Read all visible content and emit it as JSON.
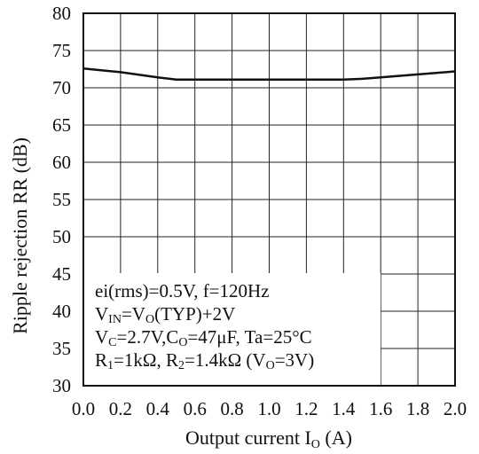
{
  "chart_data": {
    "type": "line",
    "title": "",
    "xlabel": "Output current I",
    "xlabel_sub": "O",
    "xlabel_unit": " (A)",
    "ylabel": "Ripple rejection RR  (dB)",
    "xlim": [
      0.0,
      2.0
    ],
    "ylim": [
      30,
      80
    ],
    "x_ticks": [
      "0.0",
      "0.2",
      "0.4",
      "0.6",
      "0.8",
      "1.0",
      "1.2",
      "1.4",
      "1.6",
      "1.8",
      "2.0"
    ],
    "y_ticks": [
      "30",
      "35",
      "40",
      "45",
      "50",
      "55",
      "60",
      "65",
      "70",
      "75",
      "80"
    ],
    "grid": true,
    "series": [
      {
        "x": [
          0.0,
          0.2,
          0.4,
          0.5,
          0.6,
          1.0,
          1.4,
          1.5,
          1.6,
          1.8,
          2.0
        ],
        "y": [
          72.6,
          72.1,
          71.4,
          71.1,
          71.1,
          71.1,
          71.1,
          71.2,
          71.4,
          71.8,
          72.2
        ],
        "color": "#111111"
      }
    ],
    "annotation": {
      "line1": "ei(rms)=0.5V, f=120Hz",
      "line2_a": "V",
      "line2_a_sub": "IN",
      "line2_b": "=V",
      "line2_b_sub": "O",
      "line2_c": "(TYP)+2V",
      "line3_a": "V",
      "line3_a_sub": "C",
      "line3_b": "=2.7V,C",
      "line3_b_sub": "O",
      "line3_c": "=47μF, Ta=25°C",
      "line4_a": "R",
      "line4_a_sub": "1",
      "line4_b": "=1kΩ, R",
      "line4_b_sub": "2",
      "line4_c": "=1.4kΩ (V",
      "line4_c_sub": "O",
      "line4_d": "=3V)"
    }
  }
}
